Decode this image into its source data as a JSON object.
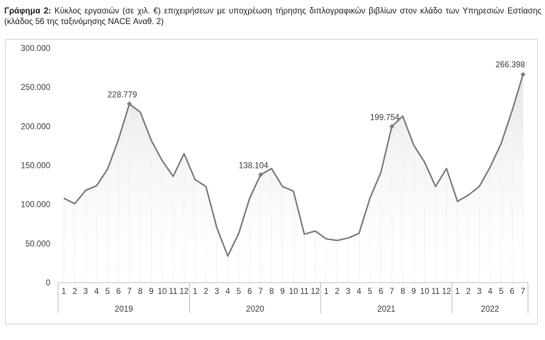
{
  "caption": {
    "prefix": "Γράφημα 2:",
    "text": " Κύκλος εργασιών (σε χιλ. €) επιχειρήσεων με υποχρέωση τήρησης διπλογραφικών βιβλίων στον κλάδο των Υπηρεσιών Εστίασης (κλάδος 56 της ταξινόμησης NACE Αναθ. 2)"
  },
  "colors": {
    "line": "#7f7f7f",
    "fill_top": "#e6e6e6",
    "axis": "#bfbfbf",
    "text": "#404040"
  },
  "chart_data": {
    "type": "area",
    "y_tick_labels": [
      "0",
      "50.000",
      "100.000",
      "150.000",
      "200.000",
      "250.000",
      "300.000"
    ],
    "ylim": [
      0,
      300000
    ],
    "years": [
      {
        "label": "2019",
        "months": [
          "1",
          "2",
          "3",
          "4",
          "5",
          "6",
          "7",
          "8",
          "9",
          "10",
          "11",
          "12"
        ]
      },
      {
        "label": "2020",
        "months": [
          "1",
          "2",
          "3",
          "4",
          "5",
          "6",
          "7",
          "8",
          "9",
          "10",
          "11",
          "12"
        ]
      },
      {
        "label": "2021",
        "months": [
          "1",
          "2",
          "3",
          "4",
          "5",
          "6",
          "7",
          "8",
          "9",
          "10",
          "11",
          "12"
        ]
      },
      {
        "label": "2022",
        "months": [
          "1",
          "2",
          "3",
          "4",
          "5",
          "6",
          "7"
        ]
      }
    ],
    "values": [
      108000,
      101000,
      118000,
      124000,
      145000,
      183000,
      228779,
      218000,
      182000,
      156000,
      136000,
      165000,
      132000,
      123000,
      70000,
      34000,
      63000,
      108000,
      138104,
      146000,
      123000,
      117000,
      62000,
      66000,
      56000,
      54000,
      57000,
      63000,
      108000,
      141000,
      199754,
      213000,
      176000,
      154000,
      123000,
      146000,
      104000,
      112000,
      123000,
      148000,
      178000,
      220000,
      266398
    ],
    "data_labels": [
      {
        "index": 6,
        "text": "228.779"
      },
      {
        "index": 18,
        "text": "138.104"
      },
      {
        "index": 30,
        "text": "199.754"
      },
      {
        "index": 42,
        "text": "266.398"
      }
    ]
  }
}
